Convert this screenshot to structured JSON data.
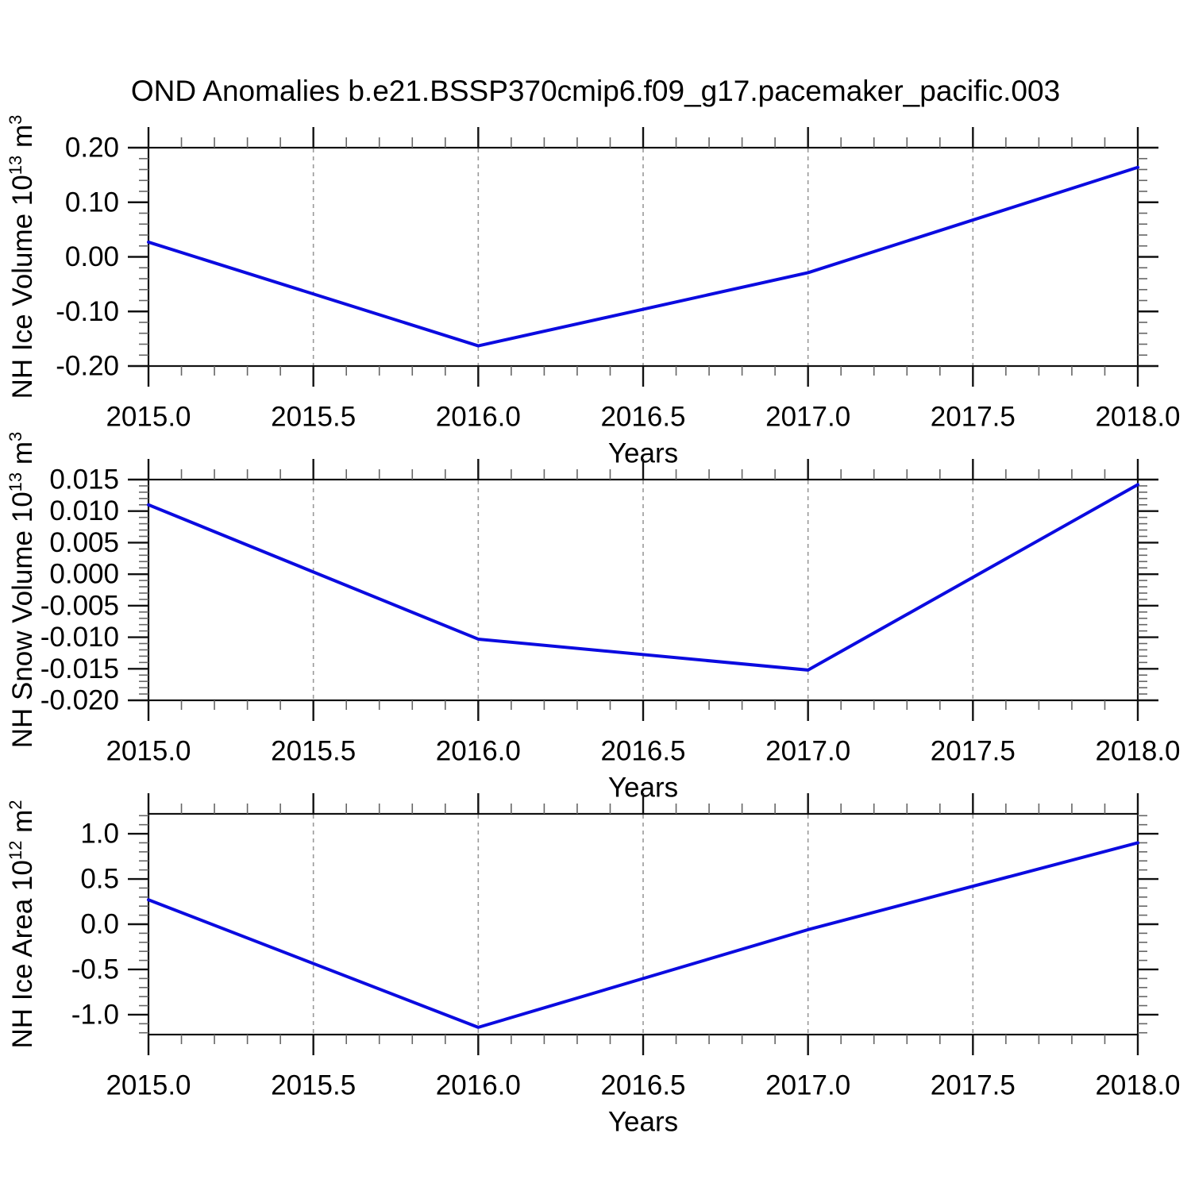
{
  "title": "OND Anomalies b.e21.BSSP370cmip6.f09_g17.pacemaker_pacific.003",
  "colors": {
    "line": "#0b0be0",
    "frame": "#111111",
    "grid": "#999999",
    "minor_tick": "#666666",
    "text": "#000000"
  },
  "chart_data": [
    {
      "type": "line",
      "id": "nh-ice-volume",
      "ylabel": "NH Ice Volume 10^13 m^3",
      "ylabel_parts": [
        {
          "t": "NH Ice Volume 10"
        },
        {
          "t": "13",
          "sup": true
        },
        {
          "t": " m"
        },
        {
          "t": "3",
          "sup": true
        }
      ],
      "xlabel": "Years",
      "x": [
        2015.0,
        2016.0,
        2017.0,
        2018.0
      ],
      "values": [
        0.027,
        -0.163,
        -0.029,
        0.164
      ],
      "xlim": [
        2015.0,
        2018.0
      ],
      "ylim": [
        -0.2,
        0.2
      ],
      "xticks": {
        "values": [
          2015.0,
          2015.5,
          2016.0,
          2016.5,
          2017.0,
          2017.5,
          2018.0
        ],
        "labels": [
          "2015.0",
          "2015.5",
          "2016.0",
          "2016.5",
          "2017.0",
          "2017.5",
          "2018.0"
        ],
        "minor_step": 0.1
      },
      "yticks": {
        "values": [
          0.2,
          0.1,
          0.0,
          -0.1,
          -0.2
        ],
        "labels": [
          "0.20",
          "0.10",
          "0.00",
          "-0.10",
          "-0.20"
        ],
        "minor_step": 0.02
      },
      "grid_x": [
        2015.5,
        2016.0,
        2016.5,
        2017.0,
        2017.5
      ],
      "grid_style": "dashed-vertical"
    },
    {
      "type": "line",
      "id": "nh-snow-volume",
      "ylabel": "NH Snow Volume 10^13 m^3",
      "ylabel_parts": [
        {
          "t": "NH Snow Volume 10"
        },
        {
          "t": "13",
          "sup": true
        },
        {
          "t": " m"
        },
        {
          "t": "3",
          "sup": true
        }
      ],
      "xlabel": "Years",
      "x": [
        2015.0,
        2016.0,
        2017.0,
        2018.0
      ],
      "values": [
        0.011,
        -0.0103,
        -0.0152,
        0.0142
      ],
      "xlim": [
        2015.0,
        2018.0
      ],
      "ylim": [
        -0.02,
        0.015
      ],
      "xticks": {
        "values": [
          2015.0,
          2015.5,
          2016.0,
          2016.5,
          2017.0,
          2017.5,
          2018.0
        ],
        "labels": [
          "2015.0",
          "2015.5",
          "2016.0",
          "2016.5",
          "2017.0",
          "2017.5",
          "2018.0"
        ],
        "minor_step": 0.1
      },
      "yticks": {
        "values": [
          0.015,
          0.01,
          0.005,
          0.0,
          -0.005,
          -0.01,
          -0.015,
          -0.02
        ],
        "labels": [
          "0.015",
          "0.010",
          "0.005",
          "0.000",
          "-0.005",
          "-0.010",
          "-0.015",
          "-0.020"
        ],
        "minor_step": 0.001
      },
      "grid_x": [
        2015.5,
        2016.0,
        2016.5,
        2017.0,
        2017.5
      ],
      "grid_style": "dashed-vertical"
    },
    {
      "type": "line",
      "id": "nh-ice-area",
      "ylabel": "NH Ice Area 10^12 m^2",
      "ylabel_parts": [
        {
          "t": "NH Ice Area 10"
        },
        {
          "t": "12",
          "sup": true
        },
        {
          "t": " m"
        },
        {
          "t": "2",
          "sup": true
        }
      ],
      "xlabel": "Years",
      "x": [
        2015.0,
        2016.0,
        2017.0,
        2018.0
      ],
      "values": [
        0.27,
        -1.14,
        -0.06,
        0.9
      ],
      "xlim": [
        2015.0,
        2018.0
      ],
      "ylim": [
        -1.22,
        1.22
      ],
      "xticks": {
        "values": [
          2015.0,
          2015.5,
          2016.0,
          2016.5,
          2017.0,
          2017.5,
          2018.0
        ],
        "labels": [
          "2015.0",
          "2015.5",
          "2016.0",
          "2016.5",
          "2017.0",
          "2017.5",
          "2018.0"
        ],
        "minor_step": 0.1
      },
      "yticks": {
        "values": [
          1.0,
          0.5,
          0.0,
          -0.5,
          -1.0
        ],
        "labels": [
          "1.0",
          "0.5",
          "0.0",
          "-0.5",
          "-1.0"
        ],
        "minor_step": 0.1
      },
      "grid_x": [
        2015.5,
        2016.0,
        2016.5,
        2017.0,
        2017.5
      ],
      "grid_style": "dashed-vertical"
    }
  ]
}
